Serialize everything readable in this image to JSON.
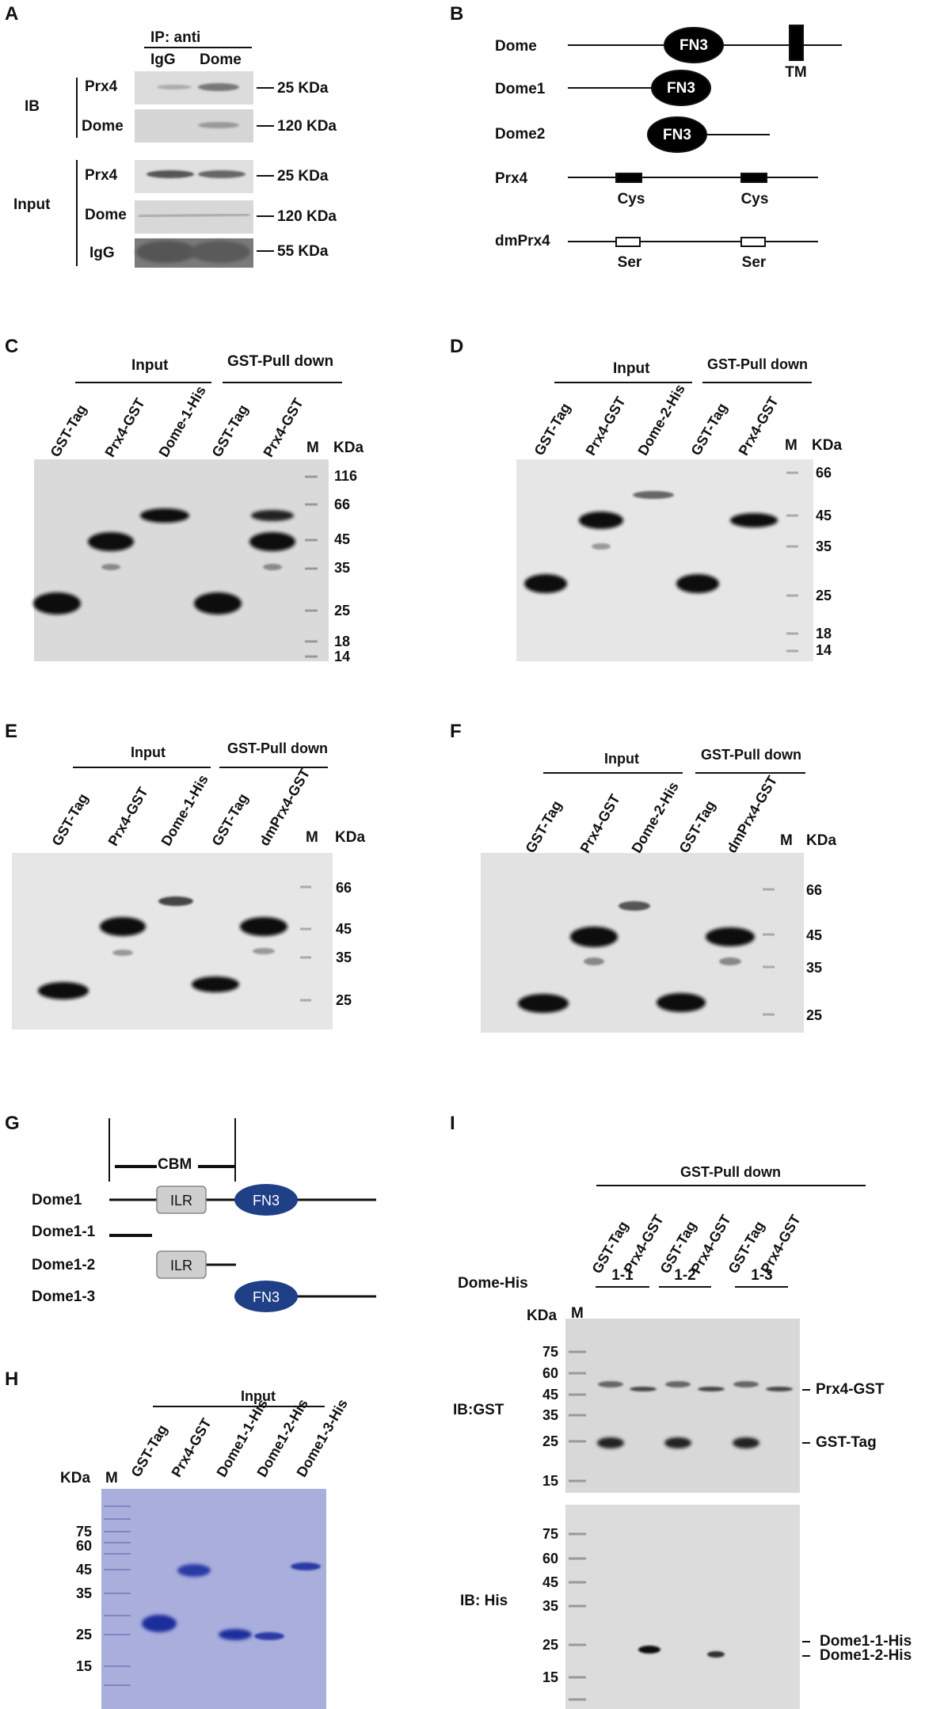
{
  "panels": {
    "A": {
      "letter": "A",
      "ip_header": "IP:  anti",
      "lanes": [
        "IgG",
        "Dome"
      ],
      "group_ib": "IB",
      "group_input": "Input",
      "rows": [
        "Prx4",
        "Dome",
        "Prx4",
        "Dome",
        "IgG"
      ],
      "markers": [
        "25 KDa",
        "120 KDa",
        "25 KDa",
        "120 KDa",
        "55 KDa"
      ]
    },
    "B": {
      "letter": "B",
      "constructs": [
        "Dome",
        "Dome1",
        "Dome2",
        "Prx4",
        "dmPrx4"
      ],
      "domain": "FN3",
      "tm": "TM",
      "cys": "Cys",
      "ser": "Ser"
    },
    "C": {
      "letter": "C",
      "input": "Input",
      "pulldown": "GST-Pull down",
      "lanes": [
        "GST-Tag",
        "Prx4-GST",
        "Dome-1-His",
        "GST-Tag",
        "Prx4-GST",
        "M"
      ],
      "kda": "KDa",
      "markers": [
        "116",
        "66",
        "45",
        "35",
        "25",
        "18",
        "14"
      ]
    },
    "D": {
      "letter": "D",
      "input": "Input",
      "pulldown": "GST-Pull down",
      "lanes": [
        "GST-Tag",
        "Prx4-GST",
        "Dome-2-His",
        "GST-Tag",
        "Prx4-GST",
        "M"
      ],
      "kda": "KDa",
      "markers": [
        "66",
        "45",
        "35",
        "25",
        "18",
        "14"
      ]
    },
    "E": {
      "letter": "E",
      "input": "Input",
      "pulldown": "GST-Pull down",
      "lanes": [
        "GST-Tag",
        "Prx4-GST",
        "Dome-1-His",
        "GST-Tag",
        "dmPrx4-GST",
        "M"
      ],
      "kda": "KDa",
      "markers": [
        "66",
        "45",
        "35",
        "25"
      ]
    },
    "F": {
      "letter": "F",
      "input": "Input",
      "pulldown": "GST-Pull down",
      "lanes": [
        "GST-Tag",
        "Prx4-GST",
        "Dome-2-His",
        "GST-Tag",
        "dmPrx4-GST",
        "M"
      ],
      "kda": "KDa",
      "markers": [
        "66",
        "45",
        "35",
        "25"
      ]
    },
    "G": {
      "letter": "G",
      "cbm": "CBM",
      "constructs": [
        "Dome1",
        "Dome1-1",
        "Dome1-2",
        "Dome1-3"
      ],
      "ilr": "ILR",
      "fn3": "FN3"
    },
    "H": {
      "letter": "H",
      "input": "Input",
      "kda": "KDa",
      "lanes": [
        "M",
        "GST-Tag",
        "Prx4-GST",
        "Dome1-1-His",
        "Dome1-2-His",
        "Dome1-3-His"
      ],
      "markers": [
        "75",
        "60",
        "45",
        "35",
        "25",
        "15"
      ]
    },
    "I": {
      "letter": "I",
      "pulldown": "GST-Pull down",
      "lanes": [
        "GST-Tag",
        "Prx4-GST",
        "GST-Tag",
        "Prx4-GST",
        "GST-Tag",
        "Prx4-GST"
      ],
      "dome_his": "Dome-His",
      "groups": [
        "1-1",
        "1-2",
        "1-3"
      ],
      "kda": "KDa",
      "m": "M",
      "ib_gst": "IB:GST",
      "ib_his": "IB: His",
      "markers_top": [
        "75",
        "60",
        "45",
        "35",
        "25",
        "15"
      ],
      "markers_bottom": [
        "75",
        "60",
        "45",
        "35",
        "25",
        "15"
      ],
      "band_labels_top": [
        "Prx4-GST",
        "GST-Tag"
      ],
      "band_labels_bottom": [
        "Dome1-1-His",
        "Dome1-2-His"
      ]
    }
  }
}
